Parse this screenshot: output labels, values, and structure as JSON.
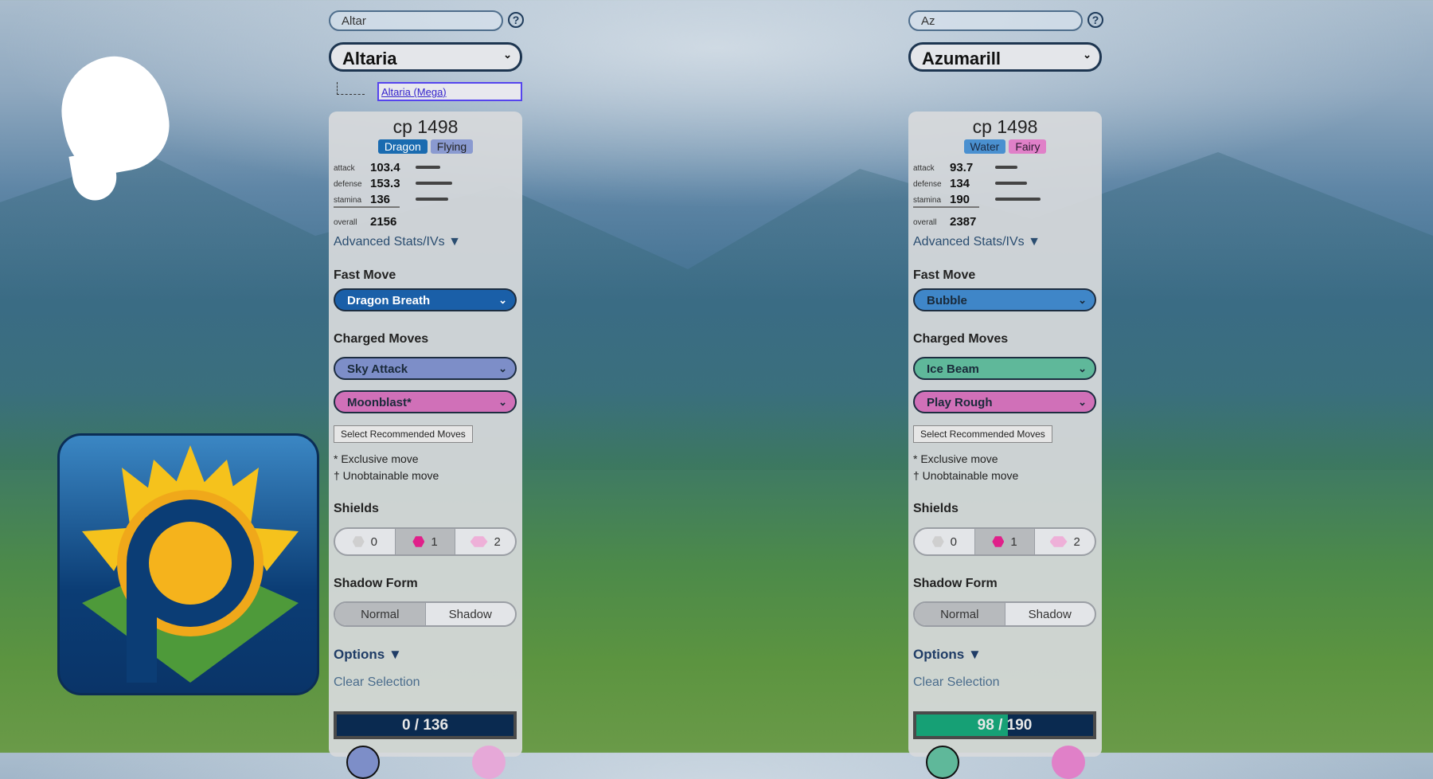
{
  "panels": [
    {
      "search": "Altar",
      "pokemon": "Altaria",
      "form_link": "Altaria (Mega)",
      "cp": "cp 1498",
      "types": [
        {
          "name": "Dragon",
          "color": "#1a6bb0",
          "text": "#ffffff"
        },
        {
          "name": "Flying",
          "color": "#8a9ad0",
          "text": "#222222"
        }
      ],
      "stats": {
        "attack_label": "attack",
        "attack": 103.4,
        "defense_label": "defense",
        "defense": 153.3,
        "stamina_label": "stamina",
        "stamina": 136,
        "overall_label": "overall",
        "overall": 2156
      },
      "advanced": "Advanced Stats/IVs ▼",
      "fast_move_label": "Fast Move",
      "fast_move": {
        "name": "Dragon Breath",
        "color": "#1a5fa8",
        "text": "#ffffff"
      },
      "charged_label": "Charged Moves",
      "charged_moves": [
        {
          "name": "Sky Attack",
          "color": "#7d8ec8"
        },
        {
          "name": "Moonblast*",
          "color": "#d070b8"
        }
      ],
      "recommend": "Select Recommended Moves",
      "exclusive": "* Exclusive move",
      "unobtainable": "† Unobtainable move",
      "shields_label": "Shields",
      "shields": [
        "0",
        "1",
        "2"
      ],
      "shields_selected": 1,
      "shadow_label": "Shadow Form",
      "shadow_options": [
        "Normal",
        "Shadow"
      ],
      "shadow_selected": 0,
      "options": "Options ▼",
      "clear": "Clear Selection",
      "hp_text": "0 / 136",
      "hp_fraction": 0,
      "circle_colors": [
        "#7d8ec8",
        "#e6a8d8"
      ]
    },
    {
      "search": "Az",
      "pokemon": "Azumarill",
      "form_link": "",
      "cp": "cp 1498",
      "types": [
        {
          "name": "Water",
          "color": "#4a90d0",
          "text": "#1a2a44"
        },
        {
          "name": "Fairy",
          "color": "#e080c8",
          "text": "#2a1a30"
        }
      ],
      "stats": {
        "attack_label": "attack",
        "attack": 93.7,
        "defense_label": "defense",
        "defense": 134,
        "stamina_label": "stamina",
        "stamina": 190,
        "overall_label": "overall",
        "overall": 2387
      },
      "advanced": "Advanced Stats/IVs ▼",
      "fast_move_label": "Fast Move",
      "fast_move": {
        "name": "Bubble",
        "color": "#3f86c8",
        "text": "#1a2a3a"
      },
      "charged_label": "Charged Moves",
      "charged_moves": [
        {
          "name": "Ice Beam",
          "color": "#5fb89a"
        },
        {
          "name": "Play Rough",
          "color": "#d070b8"
        }
      ],
      "recommend": "Select Recommended Moves",
      "exclusive": "* Exclusive move",
      "unobtainable": "† Unobtainable move",
      "shields_label": "Shields",
      "shields": [
        "0",
        "1",
        "2"
      ],
      "shields_selected": 1,
      "shadow_label": "Shadow Form",
      "shadow_options": [
        "Normal",
        "Shadow"
      ],
      "shadow_selected": 0,
      "options": "Options ▼",
      "clear": "Clear Selection",
      "hp_text": "98 / 190",
      "hp_fraction": 0.516,
      "circle_colors": [
        "#5fb89a",
        "#e080c8"
      ]
    }
  ],
  "colors": {
    "shield_active": "#e0208a",
    "shield_inactive": "#cfcfcf",
    "shield_double": "#eeb0d8"
  }
}
